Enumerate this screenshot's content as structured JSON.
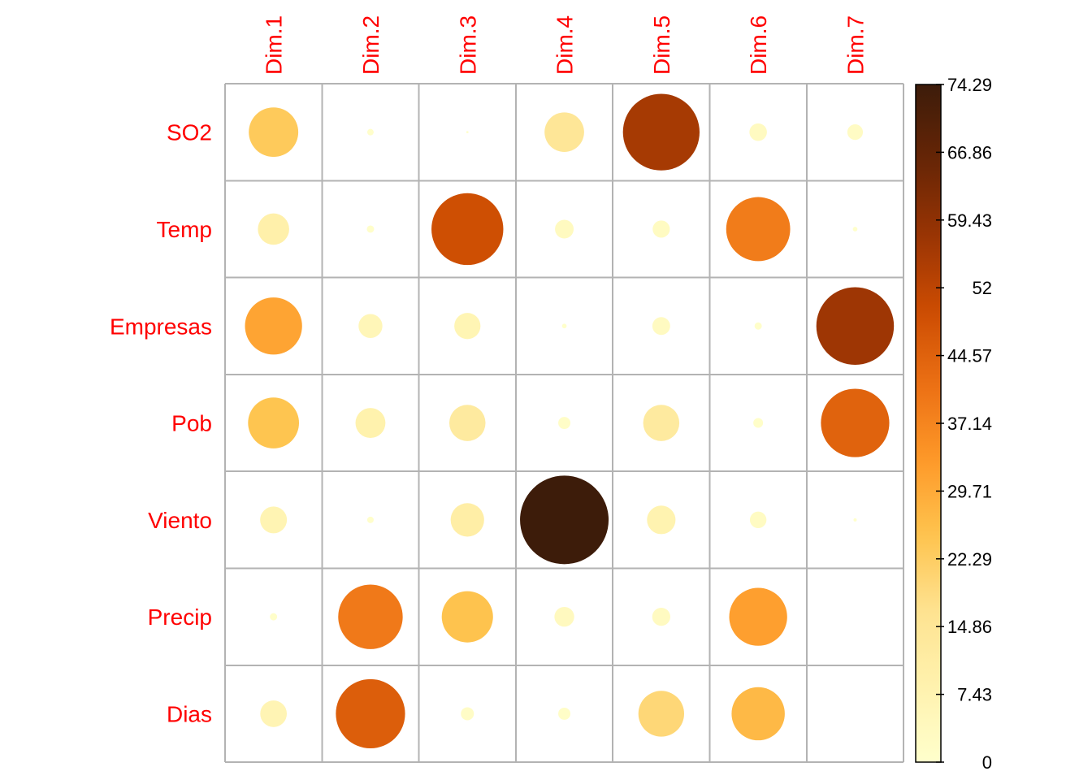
{
  "chart_data": {
    "type": "heatmap",
    "style": "circle",
    "rows": [
      "SO2",
      "Temp",
      "Empresas",
      "Pob",
      "Viento",
      "Precip",
      "Dias"
    ],
    "columns": [
      "Dim.1",
      "Dim.2",
      "Dim.3",
      "Dim.4",
      "Dim.5",
      "Dim.6",
      "Dim.7"
    ],
    "values": [
      [
        23.2,
        0.4,
        0.05,
        14.8,
        55.6,
        2.9,
        2.3
      ],
      [
        9.3,
        0.5,
        48.9,
        3.3,
        2.8,
        38.8,
        0.2
      ],
      [
        30.9,
        5.4,
        6.5,
        0.2,
        3.0,
        0.5,
        57.0
      ],
      [
        24.6,
        8.5,
        12.4,
        1.4,
        12.4,
        0.9,
        44.3
      ],
      [
        6.8,
        0.4,
        10.6,
        74.29,
        7.7,
        2.6,
        0.1
      ],
      [
        0.5,
        39.4,
        24.9,
        3.7,
        3.1,
        31.8,
        0.0
      ],
      [
        6.7,
        45.4,
        1.6,
        1.4,
        19.8,
        26.8,
        0.0
      ]
    ],
    "color_scale": {
      "min": 0,
      "max": 74.29,
      "ticks": [
        "74.29",
        "66.86",
        "59.43",
        "52",
        "44.57",
        "37.14",
        "29.71",
        "22.29",
        "14.86",
        "7.43",
        "0"
      ],
      "colors": [
        "#FFFFCC",
        "#FFF2AE",
        "#FEE391",
        "#FEC44F",
        "#FE9929",
        "#EC7014",
        "#CC4C02",
        "#993404",
        "#662506",
        "#3D1C0A"
      ]
    },
    "label_color": "#FF0000",
    "grid": true,
    "legend_position": "right"
  }
}
